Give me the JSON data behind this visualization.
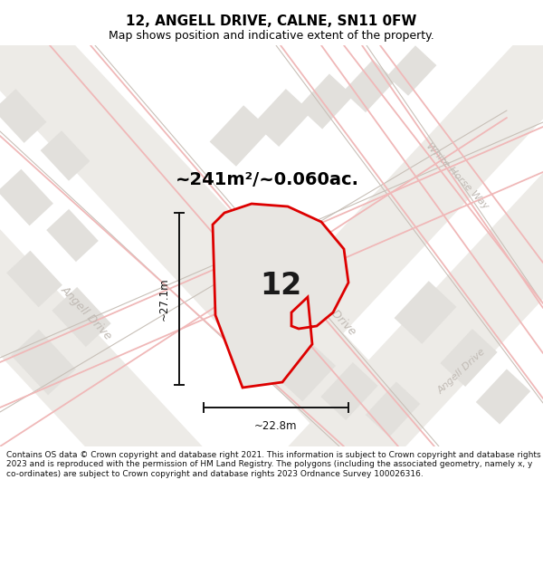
{
  "title": "12, ANGELL DRIVE, CALNE, SN11 0FW",
  "subtitle": "Map shows position and indicative extent of the property.",
  "area_label": "~241m²/~0.060ac.",
  "number_label": "12",
  "width_label": "~22.8m",
  "height_label": "~27.1m",
  "footer": "Contains OS data © Crown copyright and database right 2021. This information is subject to Crown copyright and database rights 2023 and is reproduced with the permission of HM Land Registry. The polygons (including the associated geometry, namely x, y co-ordinates) are subject to Crown copyright and database rights 2023 Ordnance Survey 100026316.",
  "bg_color": "#ffffff",
  "map_bg": "#f7f6f4",
  "block_color": "#e2e0dc",
  "road_line_color": "#f0b8b8",
  "road_outline_color": "#c8c0b8",
  "road_label_color": "#c0bab4",
  "plot_outline_color": "#dd0000",
  "plot_fill_color": "#e8e6e2",
  "dim_color": "#111111",
  "title_color": "#000000",
  "footer_color": "#111111",
  "title_fontsize": 11,
  "subtitle_fontsize": 9,
  "area_fontsize": 14,
  "number_fontsize": 24,
  "dim_fontsize": 8.5,
  "footer_fontsize": 6.5
}
